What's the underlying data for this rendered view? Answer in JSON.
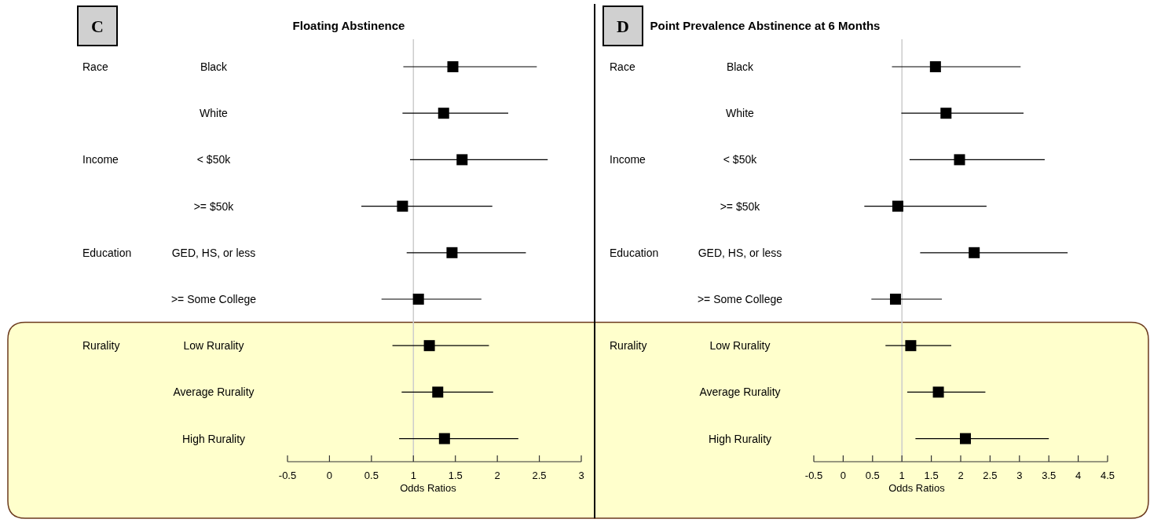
{
  "chart_data": [
    {
      "type": "scatter",
      "orientation": "horizontal",
      "title": "Floating Abstinence",
      "xlabel": "Odds Ratios",
      "marker": "square",
      "categories": [
        "Black",
        "White",
        "< $50k",
        ">= $50k",
        "GED, HS, or less",
        ">= Some College",
        "Low Rurality",
        "Average Rurality",
        "High Rurality"
      ],
      "series": [
        {
          "color": "#000000",
          "values": [
            1.47,
            1.36,
            1.58,
            0.87,
            1.46,
            1.06,
            1.19,
            1.29,
            1.37
          ],
          "errors": [
            [
              0.88,
              2.47
            ],
            [
              0.87,
              2.13
            ],
            [
              0.96,
              2.6
            ],
            [
              0.38,
              1.94
            ],
            [
              0.92,
              2.34
            ],
            [
              0.62,
              1.81
            ],
            [
              0.75,
              1.9
            ],
            [
              0.86,
              1.95
            ],
            [
              0.83,
              2.25
            ]
          ]
        }
      ],
      "xlim": [
        -0.5,
        3
      ],
      "xticks": [
        -0.5,
        0,
        0.5,
        1,
        1.5,
        2,
        2.5,
        3
      ],
      "ref_lines": [
        {
          "axis": "x",
          "value": 1,
          "color": "#cccccc"
        }
      ],
      "bands": [
        {
          "axis": "y",
          "from": "Low Rurality",
          "to": "High Rurality",
          "color": "#ffffcc"
        }
      ],
      "annotations": [
        "C",
        "Race",
        "Income",
        "Education",
        "Rurality"
      ]
    },
    {
      "type": "scatter",
      "orientation": "horizontal",
      "title": "Point Prevalence Abstinence at 6 Months",
      "xlabel": "Odds Ratios",
      "marker": "square",
      "categories": [
        "Black",
        "White",
        "< $50k",
        ">= $50k",
        "GED, HS, or less",
        ">= Some College",
        "Low Rurality",
        "Average Rurality",
        "High Rurality"
      ],
      "series": [
        {
          "color": "#000000",
          "values": [
            1.57,
            1.75,
            1.98,
            0.93,
            2.23,
            0.89,
            1.15,
            1.62,
            2.08
          ],
          "errors": [
            [
              0.83,
              3.02
            ],
            [
              0.99,
              3.07
            ],
            [
              1.13,
              3.43
            ],
            [
              0.36,
              2.44
            ],
            [
              1.31,
              3.82
            ],
            [
              0.48,
              1.68
            ],
            [
              0.72,
              1.84
            ],
            [
              1.09,
              2.42
            ],
            [
              1.23,
              3.5
            ]
          ]
        }
      ],
      "xlim": [
        -0.5,
        4.5
      ],
      "xticks": [
        -0.5,
        0,
        0.5,
        1,
        1.5,
        2,
        2.5,
        3,
        3.5,
        4,
        4.5
      ],
      "ref_lines": [
        {
          "axis": "x",
          "value": 1,
          "color": "#cccccc"
        }
      ],
      "bands": [
        {
          "axis": "y",
          "from": "Low Rurality",
          "to": "High Rurality",
          "color": "#ffffcc"
        }
      ],
      "annotations": [
        "D",
        "Race",
        "Income",
        "Education",
        "Rurality"
      ]
    }
  ]
}
